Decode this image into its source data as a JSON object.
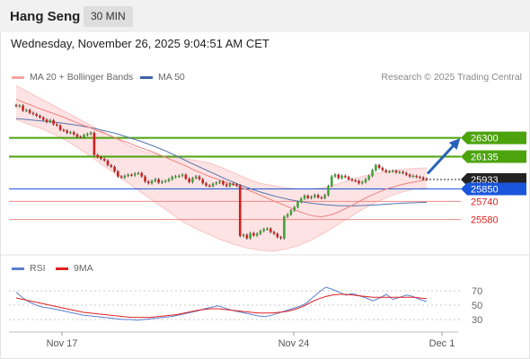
{
  "header": {
    "instrument": "Hang Seng",
    "timeframe": "30 MIN"
  },
  "datetime": "Wednesday, November 26, 2025 9:04:51 AM CET",
  "legend": {
    "bb": {
      "label": "MA 20 + Bollinger Bands",
      "color": "#f7a3a3"
    },
    "ma50": {
      "label": "MA 50",
      "color": "#3c64a5"
    }
  },
  "copyright": "Research © 2025 Trading Central",
  "rsi_legend": {
    "rsi": {
      "label": "RSI",
      "color": "#5b7fd2"
    },
    "ma9": {
      "label": "9MA",
      "color": "#e02020"
    }
  },
  "chart_data": [
    {
      "type": "candlestick",
      "x_ticks": [
        "Nov 17",
        "Nov 24",
        "Dec 1"
      ],
      "levels": [
        {
          "value": 26300,
          "label": "26300",
          "kind": "resistance",
          "color": "#4ca30d"
        },
        {
          "value": 26135,
          "label": "26135",
          "kind": "resistance",
          "color": "#4ca30d"
        },
        {
          "value": 25933,
          "label": "25933",
          "kind": "last-price",
          "color": "#222222"
        },
        {
          "value": 25850,
          "label": "25850",
          "kind": "pivot",
          "color": "#1a56db"
        },
        {
          "value": 25740,
          "label": "25740",
          "kind": "support",
          "color": "#e02020"
        },
        {
          "value": 25580,
          "label": "25580",
          "kind": "support",
          "color": "#e02020"
        }
      ],
      "close": [
        26580,
        26585,
        26540,
        26545,
        26520,
        26510,
        26495,
        26480,
        26460,
        26440,
        26455,
        26420,
        26410,
        26370,
        26365,
        26345,
        26350,
        26330,
        26310,
        26305,
        26325,
        26335,
        26345,
        26150,
        26130,
        26115,
        26100,
        26060,
        26045,
        26005,
        25960,
        25950,
        25965,
        25975,
        25970,
        25985,
        25990,
        25960,
        25915,
        25900,
        25920,
        25935,
        25905,
        25915,
        25920,
        25935,
        25955,
        25960,
        25965,
        25975,
        25940,
        25910,
        25945,
        25960,
        25935,
        25900,
        25880,
        25875,
        25895,
        25905,
        25915,
        25890,
        25875,
        25895,
        25890,
        25880,
        25435,
        25445,
        25415,
        25460,
        25440,
        25455,
        25480,
        25495,
        25500,
        25470,
        25455,
        25425,
        25415,
        25605,
        25625,
        25660,
        25690,
        25735,
        25765,
        25790,
        25770,
        25780,
        25795,
        25775,
        25770,
        25795,
        25875,
        25960,
        25975,
        25945,
        25965,
        25955,
        25935,
        25925,
        25920,
        25900,
        25910,
        25935,
        25965,
        26015,
        26060,
        26035,
        26015,
        26000,
        26005,
        26010,
        25995,
        26000,
        25990,
        25975,
        25960,
        25965,
        25955,
        25950,
        25940,
        25933
      ],
      "ma20": [
        26640,
        26610,
        26585,
        26555,
        26530,
        26505,
        26480,
        26450,
        26420,
        26395,
        26365,
        26340,
        26310,
        26280,
        26255,
        26225,
        26200,
        26175,
        26145,
        26115,
        26085,
        26055,
        26020,
        25990,
        25960,
        25935,
        25910,
        25890,
        25860,
        25835,
        25805,
        25775,
        25745,
        25715,
        25685,
        25655,
        25630,
        25610,
        25605,
        25620,
        25645,
        25680,
        25715,
        25755,
        25790,
        25820,
        25850,
        25870,
        25890,
        25905,
        25918,
        25930
      ],
      "ma50": [
        26470,
        26460,
        26450,
        26440,
        26425,
        26410,
        26390,
        26365,
        26340,
        26305,
        26270,
        26230,
        26185,
        26135,
        26080,
        26030,
        25980,
        25930,
        25885,
        25845,
        25810,
        25780,
        25755,
        25735,
        25720,
        25708,
        25702,
        25700,
        25704,
        25710,
        25718,
        25724,
        25728,
        25732
      ],
      "bb_upper": [
        26760,
        26700,
        26640,
        26580,
        26520,
        26460,
        26400,
        26340,
        26280,
        26220,
        26180,
        26150,
        26130,
        26120,
        26100,
        26080,
        26040,
        25990,
        25940,
        25900,
        25880,
        25860,
        25850,
        25850,
        25860,
        25890,
        25930,
        25960,
        25985,
        26005,
        26020,
        26030,
        26035
      ],
      "bb_lower": [
        26460,
        26420,
        26380,
        26330,
        26270,
        26200,
        26120,
        26040,
        25960,
        25880,
        25800,
        25720,
        25640,
        25560,
        25500,
        25450,
        25400,
        25360,
        25330,
        25310,
        25300,
        25320,
        25350,
        25400,
        25460,
        25530,
        25600,
        25670,
        25730,
        25780,
        25820,
        25850,
        25860
      ],
      "arrow": {
        "from": 26000,
        "to": 26300,
        "color": "#2762b8"
      }
    },
    {
      "type": "line",
      "title": "RSI",
      "y_ticks": [
        70,
        50,
        30
      ],
      "ylim": [
        20,
        80
      ],
      "series": [
        {
          "name": "RSI",
          "values": [
            68,
            60,
            54,
            50,
            47,
            46,
            44,
            42,
            40,
            38,
            36,
            35,
            34,
            33,
            32,
            31,
            30,
            30,
            29,
            30,
            31,
            32,
            33,
            34,
            36,
            38,
            40,
            42,
            45,
            47,
            49,
            46,
            43,
            41,
            39,
            37,
            35,
            34,
            36,
            39,
            42,
            45,
            48,
            52,
            60,
            68,
            75,
            72,
            68,
            64,
            66,
            63,
            60,
            56,
            60,
            65,
            58,
            61,
            64,
            62,
            58,
            55
          ]
        },
        {
          "name": "9MA",
          "values": [
            60,
            58,
            56,
            54,
            52,
            50,
            48,
            46,
            44,
            42,
            40,
            39,
            38,
            37,
            36,
            35,
            34,
            33,
            33,
            33,
            33,
            34,
            35,
            36,
            37,
            39,
            41,
            43,
            44,
            45,
            45,
            44,
            43,
            42,
            41,
            40,
            39,
            39,
            39,
            40,
            41,
            43,
            46,
            50,
            55,
            59,
            62,
            64,
            65,
            65,
            64,
            63,
            62,
            61,
            61,
            61,
            61,
            61,
            61,
            61,
            60,
            59
          ]
        }
      ]
    }
  ]
}
